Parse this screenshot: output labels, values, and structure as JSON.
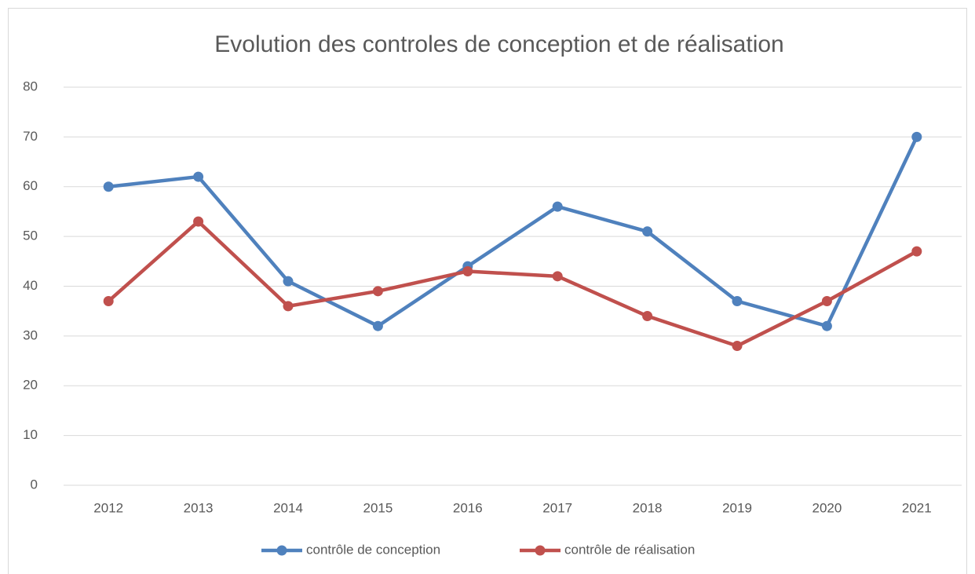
{
  "chart_data": {
    "type": "line",
    "title": "Evolution des controles de conception et de réalisation",
    "categories": [
      "2012",
      "2013",
      "2014",
      "2015",
      "2016",
      "2017",
      "2018",
      "2019",
      "2020",
      "2021"
    ],
    "series": [
      {
        "name": "contrôle de conception",
        "color": "#4f81bd",
        "values": [
          60,
          62,
          41,
          32,
          44,
          56,
          51,
          37,
          32,
          70
        ]
      },
      {
        "name": "contrôle de réalisation",
        "color": "#c0504d",
        "values": [
          37,
          53,
          36,
          39,
          43,
          42,
          34,
          28,
          37,
          47
        ]
      }
    ],
    "ylim": [
      0,
      80
    ],
    "yticks": [
      0,
      10,
      20,
      30,
      40,
      50,
      60,
      70,
      80
    ],
    "grid": true,
    "legend": "bottom"
  }
}
